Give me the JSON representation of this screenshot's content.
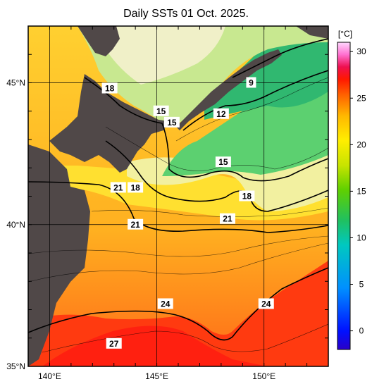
{
  "title": "Daily SSTs 01 Oct. 2025.",
  "map": {
    "lon_labels": [
      "140°E",
      "145°E",
      "150°E"
    ],
    "lon_values": [
      140,
      145,
      150
    ],
    "lat_labels": [
      "35°N",
      "40°N",
      "45°N"
    ],
    "lat_values": [
      35,
      40,
      45
    ],
    "lon_range": [
      139,
      153
    ],
    "lat_range": [
      35,
      47
    ],
    "contour_labels": [
      {
        "text": "18",
        "lon": 142.8,
        "lat": 44.8
      },
      {
        "text": "15",
        "lon": 145.2,
        "lat": 44.0
      },
      {
        "text": "9",
        "lon": 149.4,
        "lat": 45.0
      },
      {
        "text": "15",
        "lon": 145.7,
        "lat": 43.6
      },
      {
        "text": "12",
        "lon": 148.0,
        "lat": 43.9
      },
      {
        "text": "15",
        "lon": 148.1,
        "lat": 42.2
      },
      {
        "text": "21",
        "lon": 143.2,
        "lat": 41.3
      },
      {
        "text": "18",
        "lon": 144.0,
        "lat": 41.3
      },
      {
        "text": "18",
        "lon": 149.2,
        "lat": 41.0
      },
      {
        "text": "21",
        "lon": 144.0,
        "lat": 40.0
      },
      {
        "text": "21",
        "lon": 148.3,
        "lat": 40.2
      },
      {
        "text": "24",
        "lon": 145.4,
        "lat": 37.2
      },
      {
        "text": "24",
        "lon": 150.1,
        "lat": 37.2
      },
      {
        "text": "27",
        "lon": 143.0,
        "lat": 35.8
      }
    ]
  },
  "colorbar": {
    "unit": "[°C]",
    "tick_labels": [
      "0",
      "5",
      "10",
      "15",
      "20",
      "25",
      "30"
    ],
    "tick_values": [
      0,
      5,
      10,
      15,
      20,
      25,
      30
    ],
    "range": [
      -2,
      31
    ],
    "colors": [
      "#2a00c8",
      "#0020ff",
      "#0090ff",
      "#00c8c0",
      "#20c070",
      "#50d000",
      "#c0e000",
      "#ffee00",
      "#ffc000",
      "#ff8000",
      "#ff2000",
      "#ee1040",
      "#ff60c0",
      "#ffc0ff"
    ]
  },
  "land_color": "#504848"
}
